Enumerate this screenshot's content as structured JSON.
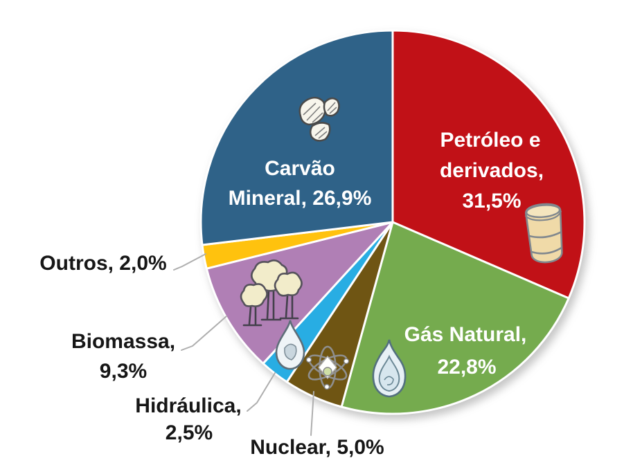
{
  "page": {
    "background_color": "#FFFFFF",
    "description": "Pie chart of energy sources with hand-drawn icons (labels in Portuguese)"
  },
  "chart_data": {
    "type": "pie",
    "title": "",
    "value_unit": "%",
    "number_format": "comma-decimal (pt-BR)",
    "start_angle": "12 o'clock",
    "direction": "clockwise",
    "legend_position": "none (direct labels)",
    "slices": [
      {
        "label": "Petróleo e derivados",
        "value": 31.5,
        "value_display": "31,5%",
        "color": "#C11117",
        "text_color": "#FFFFFF",
        "label_placement": "inside",
        "label_lines": [
          "Petróleo e",
          "derivados,",
          "31,5%"
        ],
        "icon": "oil-barrel"
      },
      {
        "label": "Gás Natural",
        "value": 22.8,
        "value_display": "22,8%",
        "color": "#75AB4E",
        "text_color": "#FFFFFF",
        "label_placement": "inside",
        "label_lines": [
          "Gás Natural,",
          "22,8%"
        ],
        "icon": "gas-flame"
      },
      {
        "label": "Nuclear",
        "value": 5.0,
        "value_display": "5,0%",
        "color": "#6F5513",
        "text_color": "#161616",
        "label_placement": "outside",
        "label_lines": [
          "Nuclear, 5,0%"
        ],
        "icon": "atom"
      },
      {
        "label": "Hidráulica",
        "value": 2.5,
        "value_display": "2,5%",
        "color": "#28ADE3",
        "text_color": "#161616",
        "label_placement": "outside",
        "label_lines": [
          "Hidráulica,",
          "2,5%"
        ],
        "icon": "water-drop"
      },
      {
        "label": "Biomassa",
        "value": 9.3,
        "value_display": "9,3%",
        "color": "#B07FB5",
        "text_color": "#161616",
        "label_placement": "outside",
        "label_lines": [
          "Biomassa,",
          "9,3%"
        ],
        "icon": "trees"
      },
      {
        "label": "Outros",
        "value": 2.0,
        "value_display": "2,0%",
        "color": "#FFC20E",
        "text_color": "#161616",
        "label_placement": "outside",
        "label_lines": [
          "Outros, 2,0%"
        ],
        "icon": "none"
      },
      {
        "label": "Carvão Mineral",
        "value": 26.9,
        "value_display": "26,9%",
        "color": "#2F6288",
        "text_color": "#FFFFFF",
        "label_placement": "inside",
        "label_lines": [
          "Carvão",
          "Mineral, 26,9%"
        ],
        "icon": "coal-rocks"
      }
    ]
  }
}
